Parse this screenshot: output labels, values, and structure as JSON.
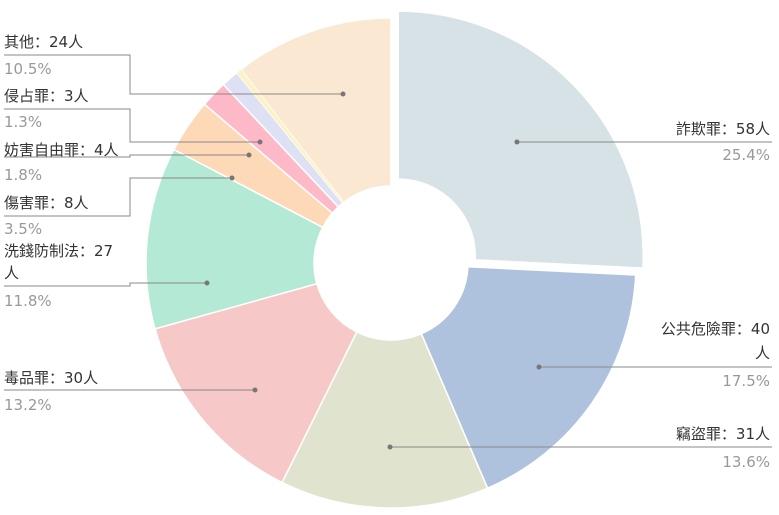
{
  "chart_data": {
    "type": "pie",
    "variant": "donut",
    "title": "",
    "legend": "none",
    "slices": [
      {
        "name": "詐欺罪",
        "count_label": "58人",
        "percent_label": "25.4%",
        "value": 58,
        "color": "#d6e2e6",
        "exploded": true
      },
      {
        "name": "公共危險罪",
        "count_label": "40人",
        "percent_label": "17.5%",
        "value": 40,
        "color": "#afc2dd"
      },
      {
        "name": "竊盜罪",
        "count_label": "31人",
        "percent_label": "13.6%",
        "value": 31,
        "color": "#e0e3cd"
      },
      {
        "name": "毒品罪",
        "count_label": "30人",
        "percent_label": "13.2%",
        "value": 30,
        "color": "#f7c8c8"
      },
      {
        "name": "洗錢防制法",
        "count_label": "27人",
        "percent_label": "11.8%",
        "value": 27,
        "color": "#b4ead5"
      },
      {
        "name": "傷害罪",
        "count_label": "8人",
        "percent_label": "3.5%",
        "value": 8,
        "color": "#fed9b8"
      },
      {
        "name": "妨害自由罪",
        "count_label": "4人",
        "percent_label": "1.8%",
        "value": 4,
        "color": "#feb9c9"
      },
      {
        "name": "侵占罪",
        "count_label": "3人",
        "percent_label": "1.3%",
        "value": 3,
        "color": "#dee0f4"
      },
      {
        "name": "其他",
        "count_label": "24人",
        "percent_label": "10.5%",
        "value": 24,
        "color": "#fae8d3"
      }
    ],
    "thin_slice_color": "#fcf3c4"
  }
}
